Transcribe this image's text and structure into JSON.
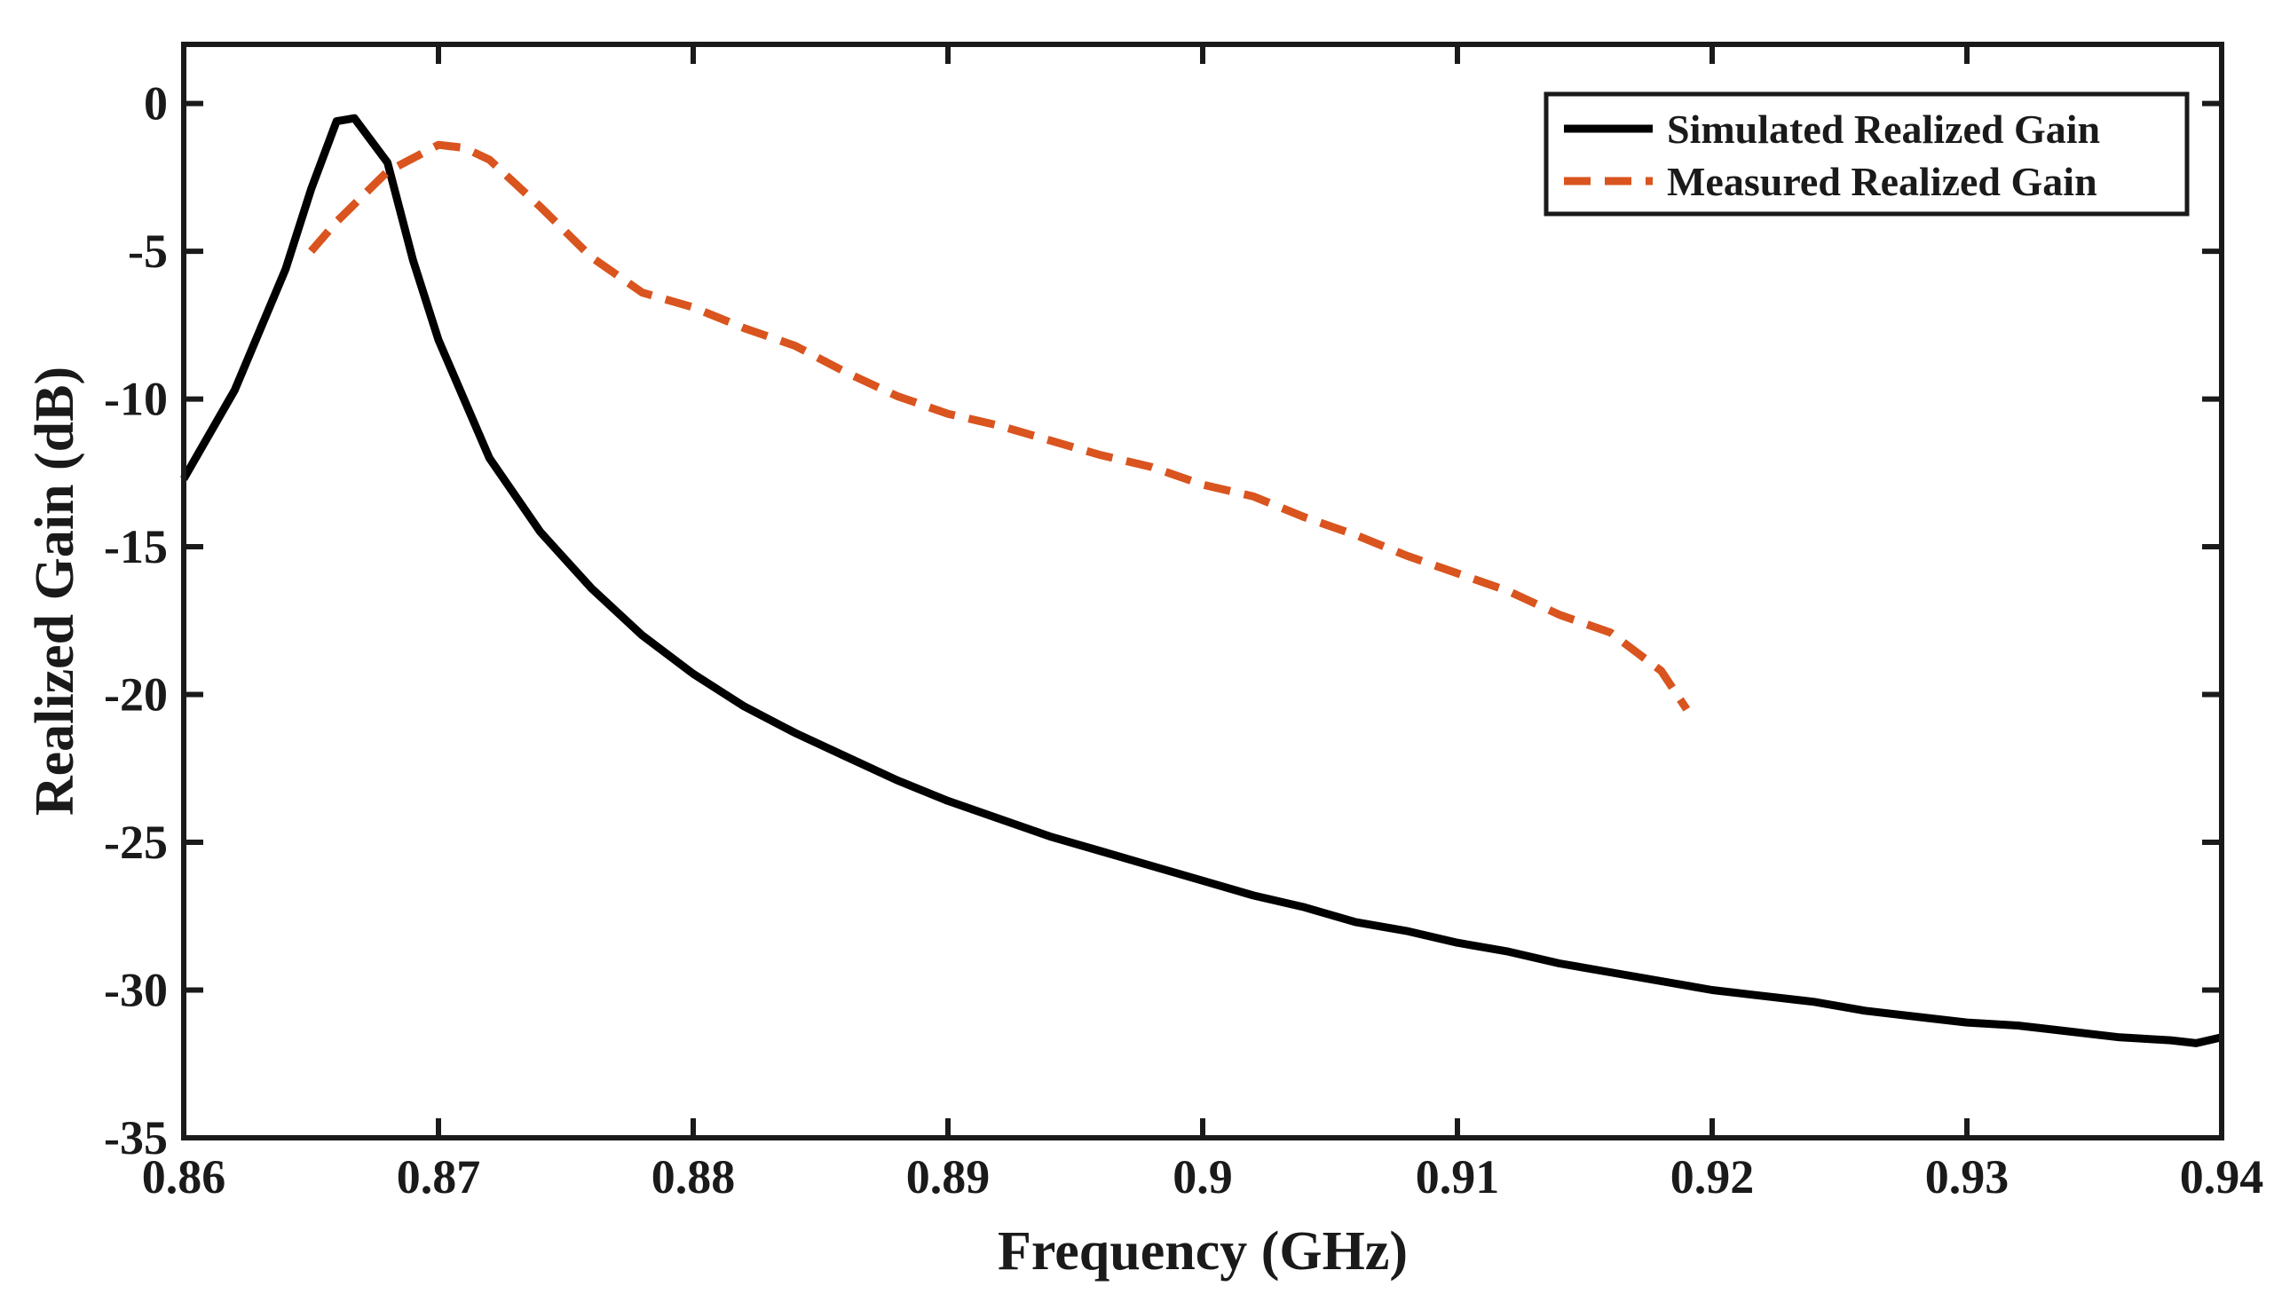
{
  "chart_data": {
    "type": "line",
    "title": "",
    "xlabel": "Frequency (GHz)",
    "ylabel": "Realized Gain (dB)",
    "xlim": [
      0.86,
      0.94
    ],
    "ylim": [
      -35,
      2
    ],
    "xticks": [
      0.86,
      0.87,
      0.88,
      0.89,
      0.9,
      0.91,
      0.92,
      0.93,
      0.94
    ],
    "xtick_labels": [
      "0.86",
      "0.87",
      "0.88",
      "0.89",
      "0.9",
      "0.91",
      "0.92",
      "0.93",
      "0.94"
    ],
    "yticks": [
      0,
      -5,
      -10,
      -15,
      -20,
      -25,
      -30,
      -35
    ],
    "ytick_labels": [
      "0",
      "-5",
      "-10",
      "-15",
      "-20",
      "-25",
      "-30",
      "-35"
    ],
    "grid": false,
    "legend_position": "top-right",
    "series": [
      {
        "name": "Simulated Realized Gain",
        "color": "#000000",
        "style": "solid",
        "x": [
          0.86,
          0.862,
          0.864,
          0.865,
          0.866,
          0.8667,
          0.868,
          0.869,
          0.87,
          0.872,
          0.874,
          0.876,
          0.878,
          0.88,
          0.882,
          0.884,
          0.886,
          0.888,
          0.89,
          0.892,
          0.894,
          0.896,
          0.898,
          0.9,
          0.902,
          0.904,
          0.906,
          0.908,
          0.91,
          0.912,
          0.914,
          0.916,
          0.918,
          0.92,
          0.922,
          0.924,
          0.926,
          0.928,
          0.93,
          0.932,
          0.934,
          0.936,
          0.938,
          0.939,
          0.94
        ],
        "y": [
          -12.7,
          -9.7,
          -5.6,
          -2.9,
          -0.6,
          -0.5,
          -2.0,
          -5.3,
          -8.0,
          -12.0,
          -14.5,
          -16.4,
          -18.0,
          -19.3,
          -20.4,
          -21.3,
          -22.1,
          -22.9,
          -23.6,
          -24.2,
          -24.8,
          -25.3,
          -25.8,
          -26.3,
          -26.8,
          -27.2,
          -27.7,
          -28.0,
          -28.4,
          -28.7,
          -29.1,
          -29.4,
          -29.7,
          -30.0,
          -30.2,
          -30.4,
          -30.7,
          -30.9,
          -31.1,
          -31.2,
          -31.4,
          -31.6,
          -31.7,
          -31.8,
          -31.6
        ]
      },
      {
        "name": "Measured Realized Gain",
        "color": "#d9541e",
        "style": "dashed",
        "x": [
          0.865,
          0.866,
          0.868,
          0.87,
          0.871,
          0.872,
          0.874,
          0.876,
          0.878,
          0.88,
          0.882,
          0.884,
          0.886,
          0.888,
          0.89,
          0.892,
          0.894,
          0.896,
          0.898,
          0.9,
          0.902,
          0.904,
          0.906,
          0.908,
          0.91,
          0.912,
          0.914,
          0.916,
          0.918,
          0.919
        ],
        "y": [
          -5.0,
          -4.0,
          -2.3,
          -1.4,
          -1.5,
          -1.9,
          -3.5,
          -5.2,
          -6.4,
          -6.9,
          -7.6,
          -8.2,
          -9.1,
          -9.9,
          -10.5,
          -10.9,
          -11.4,
          -11.9,
          -12.3,
          -12.9,
          -13.3,
          -14.0,
          -14.6,
          -15.3,
          -15.9,
          -16.5,
          -17.3,
          -17.9,
          -19.2,
          -20.5
        ]
      }
    ]
  }
}
